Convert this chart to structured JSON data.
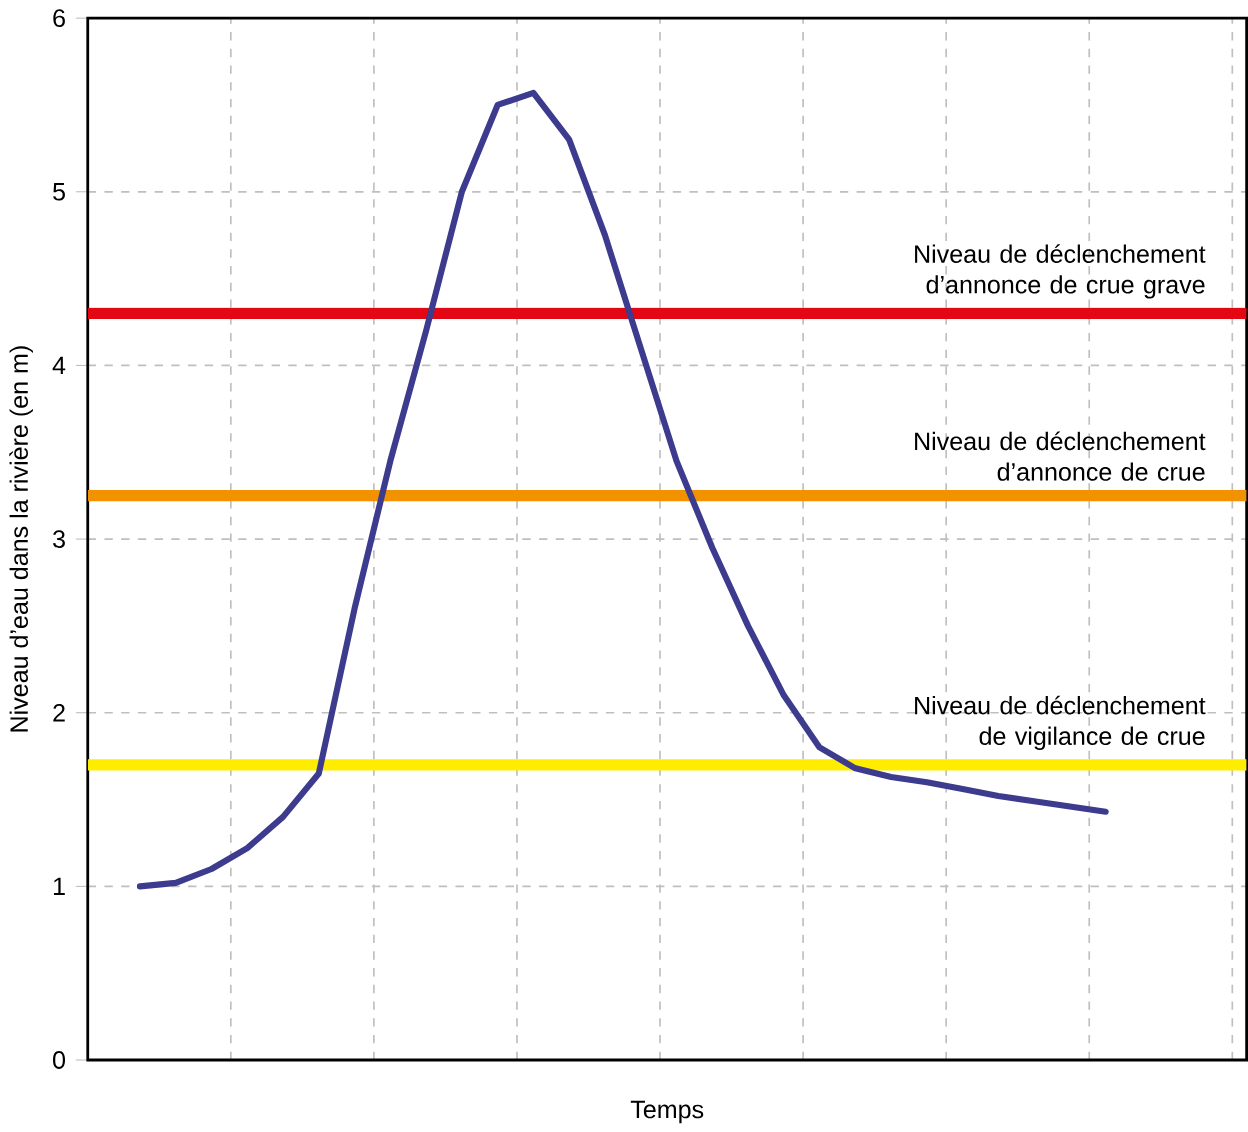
{
  "chart_data": {
    "type": "line",
    "xlabel": "Temps",
    "ylabel": "Niveau d’eau dans la rivière (en m)",
    "categories": [
      null,
      null,
      null,
      null,
      null,
      null,
      null,
      null,
      null,
      null,
      null,
      null,
      null,
      null,
      null,
      null,
      null,
      null,
      null,
      null,
      null,
      null,
      null,
      null,
      null,
      null,
      null,
      null
    ],
    "series": [
      {
        "color": "#3d3b8e",
        "values": [
          1.0,
          1.02,
          1.1,
          1.22,
          1.4,
          1.65,
          2.6,
          3.45,
          4.2,
          5.0,
          5.5,
          5.57,
          5.3,
          4.75,
          4.1,
          3.45,
          2.95,
          2.5,
          2.1,
          1.8,
          1.68,
          1.63,
          1.6,
          1.56,
          1.52,
          1.49,
          1.46,
          1.43
        ]
      }
    ],
    "ylim": [
      0,
      6
    ],
    "yticks": [
      0,
      1,
      2,
      3,
      4,
      5,
      6
    ],
    "grid": true,
    "marker": "none",
    "line_style": "solid",
    "ref_lines": [
      {
        "axis": "y",
        "value": 4.3,
        "label": "Niveau de déclenchement d’annonce de crue grave",
        "color": "#e30613"
      },
      {
        "axis": "y",
        "value": 3.25,
        "label": "Niveau de déclenchement d’annonce de crue",
        "color": "#f39200"
      },
      {
        "axis": "y",
        "value": 1.7,
        "label": "Niveau de déclenchement de vigilance de crue",
        "color": "#ffed00"
      }
    ]
  }
}
